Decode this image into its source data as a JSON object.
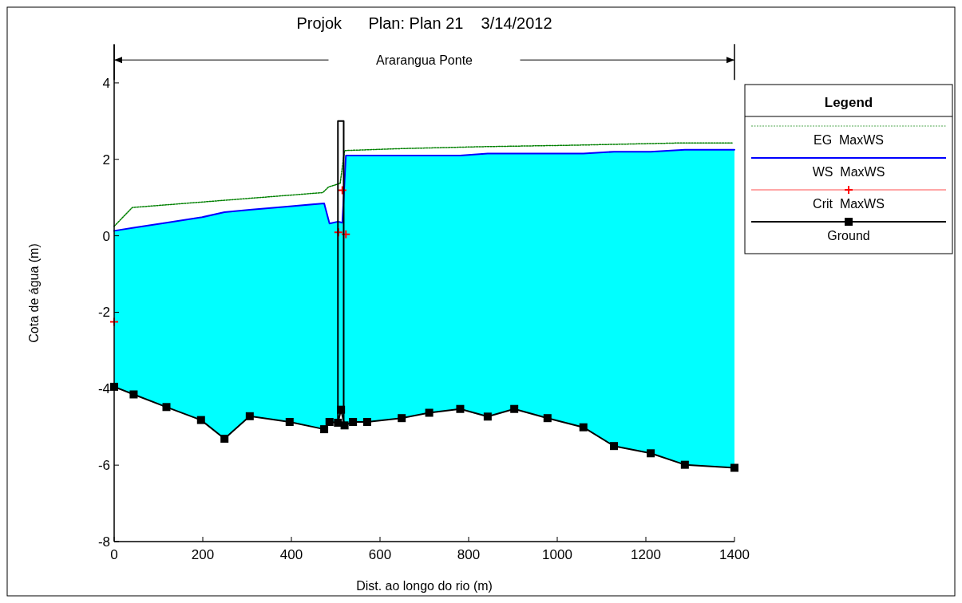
{
  "chart_data": {
    "type": "line",
    "title": "Projok      Plan: Plan 21    3/14/2012",
    "xlabel": "Dist. ao longo do rio (m)",
    "ylabel": "Cota de água (m)",
    "legend_title": "Legend",
    "legend": "right",
    "annotations": [
      "Ararangua Ponte"
    ],
    "xlim": [
      0,
      1400
    ],
    "xticks": [
      0,
      200,
      400,
      600,
      800,
      1000,
      1200,
      1400
    ],
    "ylim": [
      -8,
      5
    ],
    "yticks": [
      -8,
      -6,
      -4,
      -2,
      0,
      2,
      4
    ],
    "grid": false,
    "series": [
      {
        "name": "EG  MaxWS",
        "color": "#008000",
        "line_style": "dotted",
        "x": [
          0,
          41,
          471,
          484,
          510,
          520,
          646,
          826,
          1038,
          1283,
          1395
        ],
        "values": [
          0.25,
          0.74,
          1.13,
          1.28,
          1.37,
          2.23,
          2.28,
          2.33,
          2.37,
          2.43,
          2.43
        ]
      },
      {
        "name": "WS  MaxWS",
        "color": "#0000ff",
        "x": [
          0,
          44,
          118,
          196,
          249,
          306,
          396,
          474,
          486,
          505,
          512,
          515,
          520,
          523,
          539,
          571,
          649,
          711,
          781,
          843,
          903,
          978,
          1059,
          1128,
          1211,
          1288,
          1400
        ],
        "values": [
          0.13,
          0.21,
          0.34,
          0.48,
          0.62,
          0.68,
          0.77,
          0.85,
          0.32,
          0.37,
          0.35,
          0.34,
          1.44,
          2.1,
          2.1,
          2.1,
          2.1,
          2.1,
          2.1,
          2.15,
          2.15,
          2.15,
          2.15,
          2.2,
          2.2,
          2.25,
          2.25
        ],
        "lower": [
          -3.95,
          -4.15,
          -4.48,
          -4.82,
          -5.31,
          -4.72,
          -4.87,
          -5.06,
          -4.87,
          -4.89,
          -4.55,
          -4.7,
          -4.96,
          -4.93,
          -4.87,
          -4.87,
          -4.77,
          -4.63,
          -4.53,
          -4.73,
          -4.53,
          -4.77,
          -5.01,
          -5.5,
          -5.69,
          -5.99,
          -6.07
        ],
        "upper": [
          0.13,
          0.21,
          0.34,
          0.48,
          0.62,
          0.68,
          0.77,
          0.85,
          0.32,
          0.37,
          0.35,
          0.34,
          1.44,
          2.1,
          2.1,
          2.1,
          2.1,
          2.1,
          2.1,
          2.15,
          2.15,
          2.15,
          2.15,
          2.2,
          2.2,
          2.25,
          2.25
        ]
      },
      {
        "name": "Crit  MaxWS",
        "type": "scatter",
        "color": "#ff0000",
        "marker": "cross",
        "x": [
          0,
          506,
          515,
          523
        ],
        "values": [
          -2.25,
          0.09,
          1.19,
          0.04
        ]
      },
      {
        "name": "Ground",
        "color": "#000000",
        "marker": "square",
        "x": [
          0,
          44,
          118,
          196,
          249,
          306,
          396,
          474,
          486,
          505,
          512,
          520,
          539,
          571,
          649,
          711,
          781,
          843,
          903,
          978,
          1059,
          1128,
          1211,
          1288,
          1400
        ],
        "values": [
          -3.95,
          -4.15,
          -4.48,
          -4.82,
          -5.31,
          -4.72,
          -4.87,
          -5.06,
          -4.87,
          -4.89,
          -4.55,
          -4.96,
          -4.87,
          -4.87,
          -4.77,
          -4.63,
          -4.53,
          -4.73,
          -4.53,
          -4.77,
          -5.01,
          -5.5,
          -5.69,
          -5.99,
          -6.07
        ]
      },
      {
        "color": "#000000",
        "x": [
          505,
          505,
          518,
          518
        ],
        "values": [
          -4.89,
          3,
          3,
          -4.93
        ]
      }
    ]
  }
}
